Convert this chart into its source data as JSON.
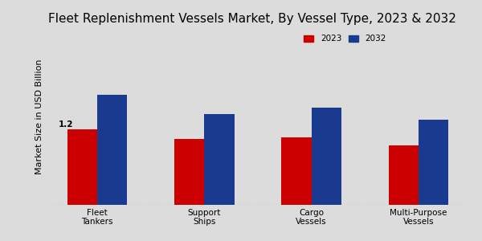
{
  "title": "Fleet Replenishment Vessels Market, By Vessel Type, 2023 & 2032",
  "categories": [
    "Fleet\nTankers",
    "Support\nShips",
    "Cargo\nVessels",
    "Multi-Purpose\nVessels"
  ],
  "values_2023": [
    1.2,
    1.05,
    1.08,
    0.95
  ],
  "values_2032": [
    1.75,
    1.45,
    1.55,
    1.35
  ],
  "color_2023": "#cc0000",
  "color_2032": "#1a3a8f",
  "ylabel": "Market Size in USD Billion",
  "legend_labels": [
    "2023",
    "2032"
  ],
  "annotation_value": "1.2",
  "background_color": "#dcdcdc",
  "bar_width": 0.28,
  "ylim": [
    0,
    2.8
  ],
  "title_fontsize": 11,
  "axis_label_fontsize": 8,
  "tick_fontsize": 7.5
}
